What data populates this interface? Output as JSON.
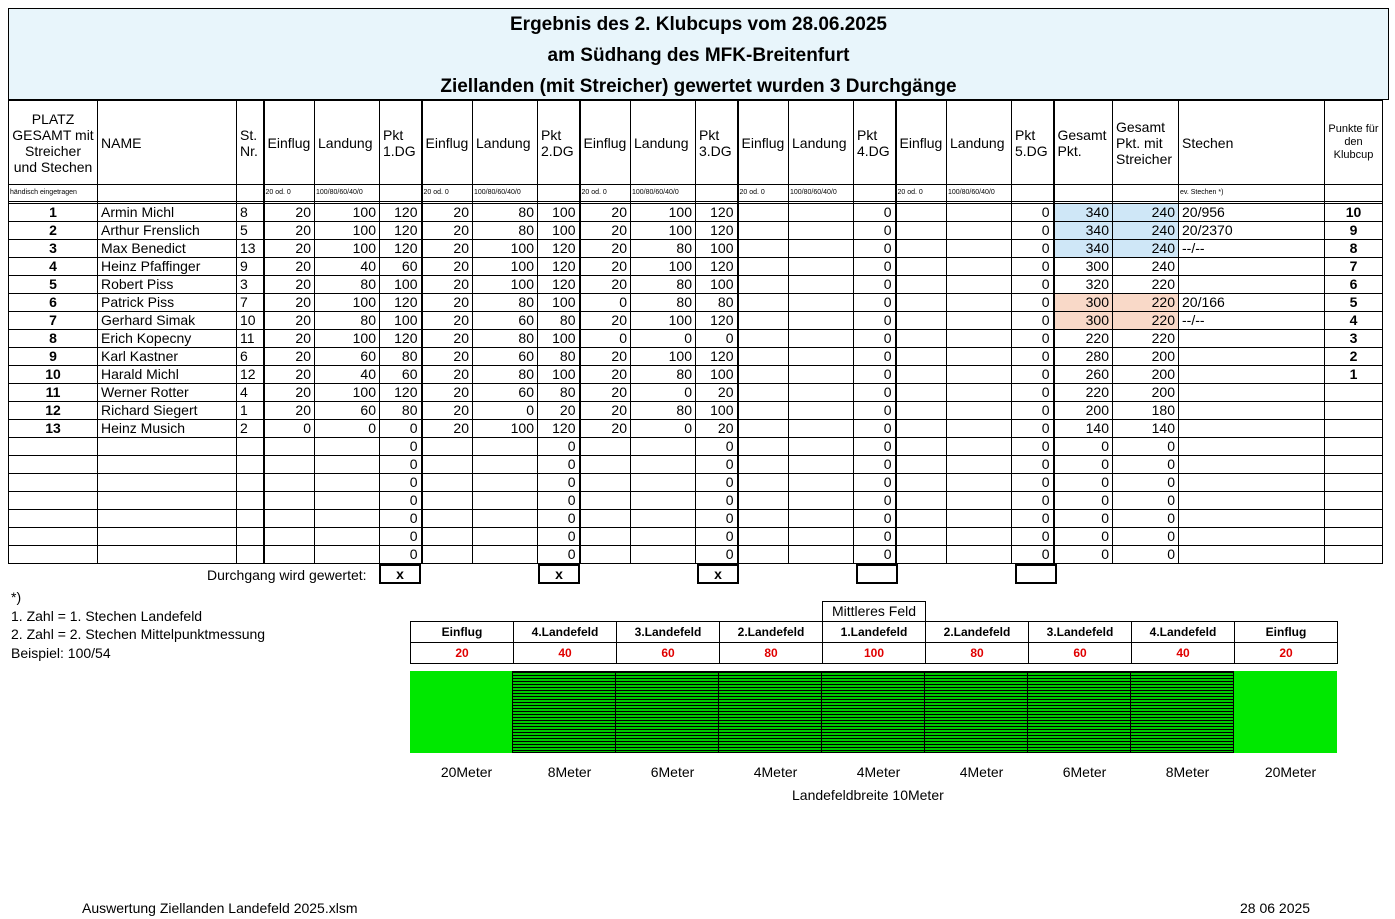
{
  "title": {
    "line1": "Ergebnis des 2. Klubcups vom 28.06.2025",
    "line2": "am Südhang des MFK-Breitenfurt",
    "line3": "Ziellanden (mit Streicher) gewertet wurden 3 Durchgänge"
  },
  "headers": [
    "PLATZ GESAMT mit Streicher und Stechen",
    "NAME",
    "St. Nr.",
    "Einflug",
    "Landung",
    "Pkt 1.DG",
    "Einflug",
    "Landung",
    "Pkt 2.DG",
    "Einflug",
    "Landung",
    "Pkt 3.DG",
    "Einflug",
    "Landung",
    "Pkt 4.DG",
    "Einflug",
    "Landung",
    "Pkt 5.DG",
    "Gesamt Pkt.",
    "Gesamt Pkt. mit Streicher",
    "Stechen",
    "Punkte für den Klubcup"
  ],
  "subheaders": [
    "händisch eingetragen",
    "",
    "",
    "20 od. 0",
    "100/80/60/40/0",
    "",
    "20 od. 0",
    "100/80/60/40/0",
    "",
    "20 od. 0",
    "100/80/60/40/0",
    "",
    "20 od. 0",
    "100/80/60/40/0",
    "",
    "20 od. 0",
    "100/80/60/40/0",
    "",
    "",
    "",
    "ev. Stechen *)",
    ""
  ],
  "rows": [
    [
      "1",
      "Armin Michl",
      "8",
      "20",
      "100",
      "120",
      "20",
      "80",
      "100",
      "20",
      "100",
      "120",
      "",
      "",
      "0",
      "",
      "",
      "0",
      "340",
      "240",
      "20/956",
      "10"
    ],
    [
      "2",
      "Arthur Frenslich",
      "5",
      "20",
      "100",
      "120",
      "20",
      "80",
      "100",
      "20",
      "100",
      "120",
      "",
      "",
      "0",
      "",
      "",
      "0",
      "340",
      "240",
      "20/2370",
      "9"
    ],
    [
      "3",
      "Max Benedict",
      "13",
      "20",
      "100",
      "120",
      "20",
      "100",
      "120",
      "20",
      "80",
      "100",
      "",
      "",
      "0",
      "",
      "",
      "0",
      "340",
      "240",
      "--/--",
      "8"
    ],
    [
      "4",
      "Heinz Pfaffinger",
      "9",
      "20",
      "40",
      "60",
      "20",
      "100",
      "120",
      "20",
      "100",
      "120",
      "",
      "",
      "0",
      "",
      "",
      "0",
      "300",
      "240",
      "",
      "7"
    ],
    [
      "5",
      "Robert Piss",
      "3",
      "20",
      "80",
      "100",
      "20",
      "100",
      "120",
      "20",
      "80",
      "100",
      "",
      "",
      "0",
      "",
      "",
      "0",
      "320",
      "220",
      "",
      "6"
    ],
    [
      "6",
      "Patrick Piss",
      "7",
      "20",
      "100",
      "120",
      "20",
      "80",
      "100",
      "0",
      "80",
      "80",
      "",
      "",
      "0",
      "",
      "",
      "0",
      "300",
      "220",
      "20/166",
      "5"
    ],
    [
      "7",
      "Gerhard Simak",
      "10",
      "20",
      "80",
      "100",
      "20",
      "60",
      "80",
      "20",
      "100",
      "120",
      "",
      "",
      "0",
      "",
      "",
      "0",
      "300",
      "220",
      "--/--",
      "4"
    ],
    [
      "8",
      "Erich Kopecny",
      "11",
      "20",
      "100",
      "120",
      "20",
      "80",
      "100",
      "0",
      "0",
      "0",
      "",
      "",
      "0",
      "",
      "",
      "0",
      "220",
      "220",
      "",
      "3"
    ],
    [
      "9",
      "Karl Kastner",
      "6",
      "20",
      "60",
      "80",
      "20",
      "60",
      "80",
      "20",
      "100",
      "120",
      "",
      "",
      "0",
      "",
      "",
      "0",
      "280",
      "200",
      "",
      "2"
    ],
    [
      "10",
      "Harald Michl",
      "12",
      "20",
      "40",
      "60",
      "20",
      "80",
      "100",
      "20",
      "80",
      "100",
      "",
      "",
      "0",
      "",
      "",
      "0",
      "260",
      "200",
      "",
      "1"
    ],
    [
      "11",
      "Werner Rotter",
      "4",
      "20",
      "100",
      "120",
      "20",
      "60",
      "80",
      "20",
      "0",
      "20",
      "",
      "",
      "0",
      "",
      "",
      "0",
      "220",
      "200",
      "",
      ""
    ],
    [
      "12",
      "Richard Siegert",
      "1",
      "20",
      "60",
      "80",
      "20",
      "0",
      "20",
      "20",
      "80",
      "100",
      "",
      "",
      "0",
      "",
      "",
      "0",
      "200",
      "180",
      "",
      ""
    ],
    [
      "13",
      "Heinz Musich",
      "2",
      "0",
      "0",
      "0",
      "20",
      "100",
      "120",
      "20",
      "0",
      "20",
      "",
      "",
      "0",
      "",
      "",
      "0",
      "140",
      "140",
      "",
      ""
    ],
    [
      "",
      "",
      "",
      "",
      "",
      "0",
      "",
      "",
      "0",
      "",
      "",
      "0",
      "",
      "",
      "0",
      "",
      "",
      "0",
      "0",
      "0",
      "",
      ""
    ],
    [
      "",
      "",
      "",
      "",
      "",
      "0",
      "",
      "",
      "0",
      "",
      "",
      "0",
      "",
      "",
      "0",
      "",
      "",
      "0",
      "0",
      "0",
      "",
      ""
    ],
    [
      "",
      "",
      "",
      "",
      "",
      "0",
      "",
      "",
      "0",
      "",
      "",
      "0",
      "",
      "",
      "0",
      "",
      "",
      "0",
      "0",
      "0",
      "",
      ""
    ],
    [
      "",
      "",
      "",
      "",
      "",
      "0",
      "",
      "",
      "0",
      "",
      "",
      "0",
      "",
      "",
      "0",
      "",
      "",
      "0",
      "0",
      "0",
      "",
      ""
    ],
    [
      "",
      "",
      "",
      "",
      "",
      "0",
      "",
      "",
      "0",
      "",
      "",
      "0",
      "",
      "",
      "0",
      "",
      "",
      "0",
      "0",
      "0",
      "",
      ""
    ],
    [
      "",
      "",
      "",
      "",
      "",
      "0",
      "",
      "",
      "0",
      "",
      "",
      "0",
      "",
      "",
      "0",
      "",
      "",
      "0",
      "0",
      "0",
      "",
      ""
    ],
    [
      "",
      "",
      "",
      "",
      "",
      "0",
      "",
      "",
      "0",
      "",
      "",
      "0",
      "",
      "",
      "0",
      "",
      "",
      "0",
      "0",
      "0",
      "",
      ""
    ]
  ],
  "highlight": {
    "blue_rows": [
      0,
      1,
      2
    ],
    "peach_rows": [
      5,
      6
    ],
    "blue_color": "#cfe7f7",
    "peach_color": "#f9d9c8"
  },
  "durchgang": {
    "label": "Durchgang wird gewertet:",
    "marks": [
      "x",
      "x",
      "x",
      "",
      ""
    ]
  },
  "notes": [
    "*)",
    "1. Zahl = 1. Stechen Landefeld",
    "2. Zahl = 2. Stechen Mittelpunktmessung",
    "Beispiel:  100/54"
  ],
  "field": {
    "mittleres": "Mittleres Feld",
    "labels": [
      "Einflug",
      "4.Landefeld",
      "3.Landefeld",
      "2.Landefeld",
      "1.Landefeld",
      "2.Landefeld",
      "3.Landefeld",
      "4.Landefeld",
      "Einflug"
    ],
    "points": [
      "20",
      "40",
      "60",
      "80",
      "100",
      "80",
      "60",
      "40",
      "20"
    ],
    "meters": [
      "20Meter",
      "8Meter",
      "6Meter",
      "4Meter",
      "4Meter",
      "4Meter",
      "6Meter",
      "8Meter",
      "20Meter"
    ],
    "breite": "Landefeldbreite 10Meter",
    "color": "#00e800"
  },
  "footer": {
    "file": "Auswertung Ziellanden Landefeld 2025.xlsm",
    "date": "28 06 2025"
  }
}
